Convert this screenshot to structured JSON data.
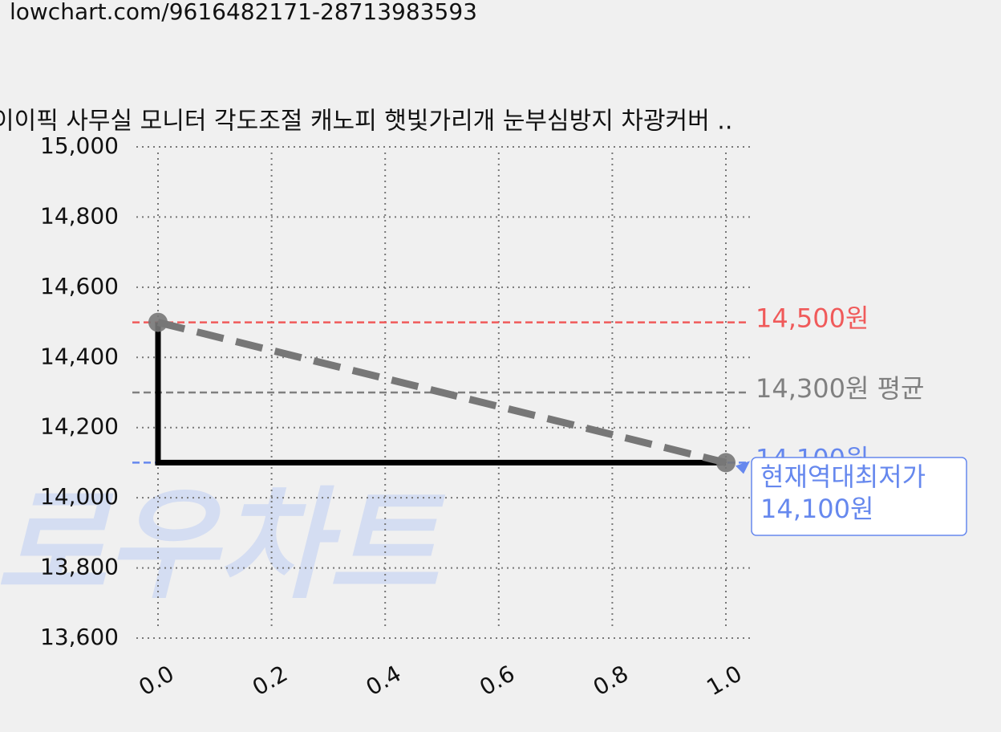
{
  "url": "lowchart.com/9616482171-28713983593",
  "chart_data": {
    "type": "line",
    "title": "이이픽 사무실 모니터 각도조절 캐노피 햇빛가리개 눈부심방지 차광커버 ..",
    "watermark": "로우차트",
    "xlim": [
      0,
      1
    ],
    "xticks": [
      {
        "value": 0,
        "label": "0.0"
      },
      0.2,
      0.4,
      0.6,
      0.8,
      {
        "value": 1,
        "label": "1.0"
      }
    ],
    "ylim": [
      13600,
      15000
    ],
    "yticks": [
      {
        "value": 13600,
        "label": "13,600"
      },
      {
        "value": 13800,
        "label": "13,800"
      },
      {
        "value": 14000,
        "label": "14,000"
      },
      {
        "value": 14200,
        "label": "14,200"
      },
      {
        "value": 14400,
        "label": "14,400"
      },
      {
        "value": 14600,
        "label": "14,600"
      },
      {
        "value": 14800,
        "label": "14,800"
      },
      {
        "value": 15000,
        "label": "15,000"
      }
    ],
    "grid": true,
    "series": [
      {
        "color": "#000000",
        "x": [
          0,
          0,
          1
        ],
        "values": [
          14500,
          14100,
          14100
        ]
      },
      {
        "color": "#777777",
        "dashed": true,
        "markers": true,
        "x": [
          0,
          1
        ],
        "values": [
          14500,
          14100
        ]
      }
    ],
    "reference_lines": [
      {
        "value": 14500,
        "label": "14,500원",
        "color": "#f05a5a"
      },
      {
        "value": 14300,
        "label": "14,300원 평균",
        "color": "#808080"
      },
      {
        "value": 14100,
        "label": "14,100원",
        "color": "#6688ee"
      }
    ],
    "annotation": {
      "x": 1,
      "y": 14100,
      "lines": [
        "현재역대최저가",
        "14,100원"
      ],
      "color": "#6688ee"
    }
  }
}
